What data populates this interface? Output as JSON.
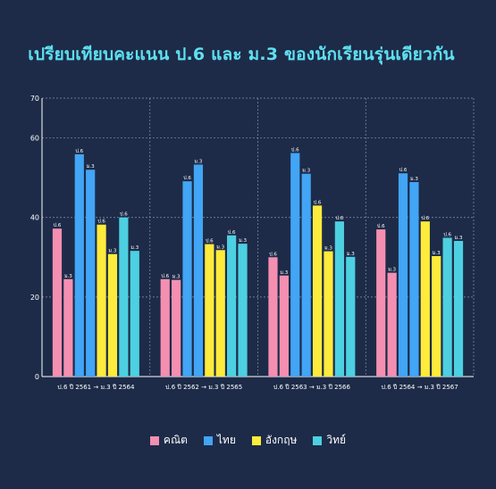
{
  "chart_data": {
    "type": "bar",
    "title": "เปรียบเทียบคะแนน ป.6 และ ม.3 ของนักเรียนรุ่นเดียวกัน",
    "xlabel": "",
    "ylabel": "",
    "ylim": [
      0,
      70
    ],
    "yticks": [
      0,
      20,
      40,
      60,
      70
    ],
    "grid": true,
    "legend_position": "bottom",
    "categories": [
      "ป.6 ปี 2561 → ม.3 ปี 2564",
      "ป.6 ปี 2562 → ม.3 ปี 2565",
      "ป.6 ปี 2563 → ม.3 ปี 2566",
      "ป.6 ปี 2564 → ม.3 ปี 2567"
    ],
    "bar_labels": [
      "ป.6",
      "ม.3"
    ],
    "series": [
      {
        "name": "คณิต",
        "color": "#f48fb1",
        "p6": [
          37.2,
          24.5,
          30.0,
          37.0
        ],
        "m3": [
          24.5,
          24.3,
          25.4,
          26.1
        ],
        "p6_values_note": ""
      },
      {
        "name": "ไทย",
        "color": "#42a5f5",
        "p6": [
          55.9,
          49.1,
          56.2,
          51.1
        ],
        "m3": [
          52.0,
          53.3,
          51.0,
          48.9
        ]
      },
      {
        "name": "อังกฤษ",
        "color": "#ffeb3b",
        "p6": [
          38.2,
          33.3,
          43.0,
          39.0
        ],
        "m3": [
          30.8,
          31.8,
          31.5,
          30.3
        ]
      },
      {
        "name": "วิทย์",
        "color": "#4dd0e1",
        "p6": [
          40.0,
          35.5,
          39.0,
          34.9
        ],
        "m3": [
          31.6,
          33.4,
          30.1,
          34.1
        ]
      }
    ]
  }
}
